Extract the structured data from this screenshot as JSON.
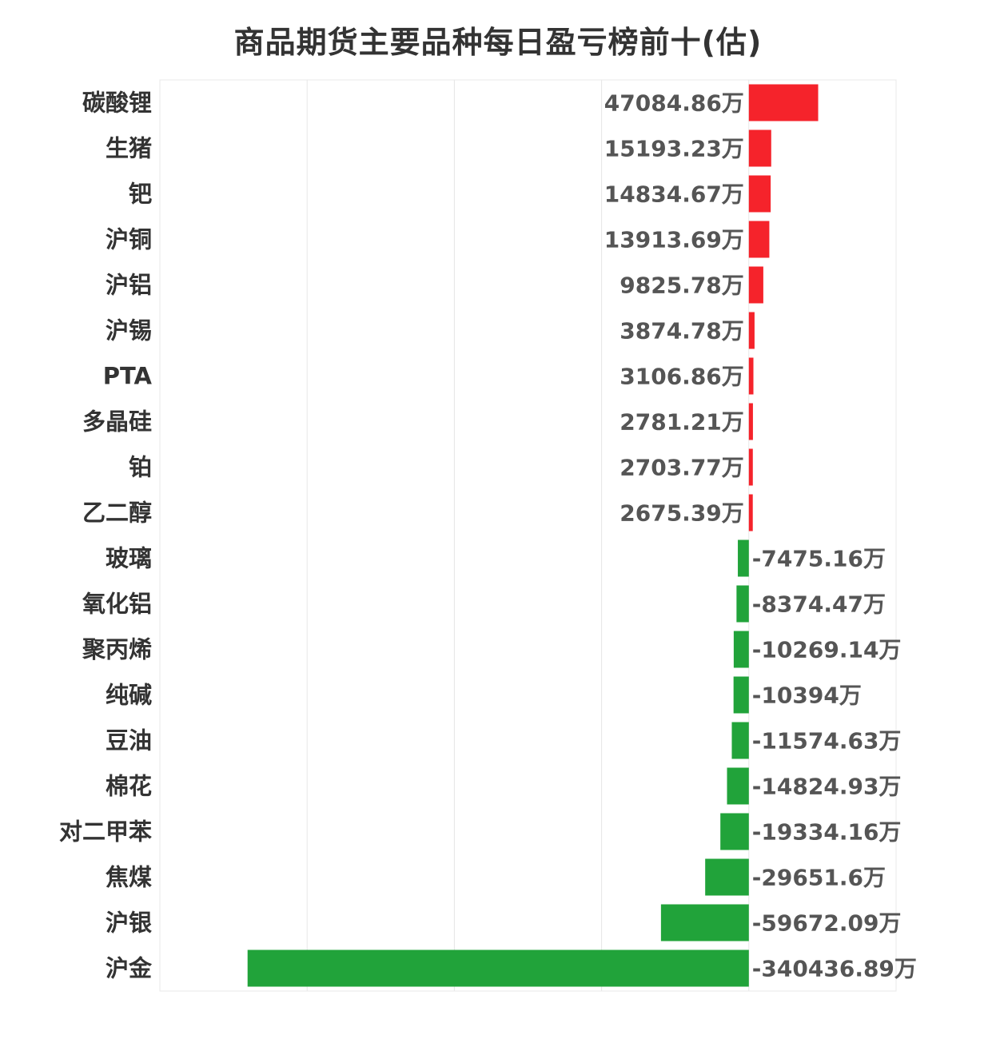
{
  "chart_data": {
    "type": "bar",
    "orientation": "horizontal",
    "title": "商品期货主要品种每日盈亏榜前十(估)",
    "xlabel": "",
    "ylabel": "",
    "unit": "万",
    "xlim": [
      -400000,
      100000
    ],
    "grid": true,
    "colors": {
      "positive": "#f5232b",
      "negative": "#21a33a"
    },
    "categories": [
      "碳酸锂",
      "生猪",
      "钯",
      "沪铜",
      "沪铝",
      "沪锡",
      "PTA",
      "多晶硅",
      "铂",
      "乙二醇",
      "玻璃",
      "氧化铝",
      "聚丙烯",
      "纯碱",
      "豆油",
      "棉花",
      "对二甲苯",
      "焦煤",
      "沪银",
      "沪金"
    ],
    "values": [
      47084.86,
      15193.23,
      14834.67,
      13913.69,
      9825.78,
      3874.78,
      3106.86,
      2781.21,
      2703.77,
      2675.39,
      -7475.16,
      -8374.47,
      -10269.14,
      -10394,
      -11574.63,
      -14824.93,
      -19334.16,
      -29651.6,
      -59672.09,
      -340436.89
    ],
    "value_labels": [
      "47084.86万",
      "15193.23万",
      "14834.67万",
      "13913.69万",
      "9825.78万",
      "3874.78万",
      "3106.86万",
      "2781.21万",
      "2703.77万",
      "2675.39万",
      "-7475.16万",
      "-8374.47万",
      "-10269.14万",
      "-10394万",
      "-11574.63万",
      "-14824.93万",
      "-19334.16万",
      "-29651.6万",
      "-59672.09万",
      "-340436.89万"
    ]
  }
}
